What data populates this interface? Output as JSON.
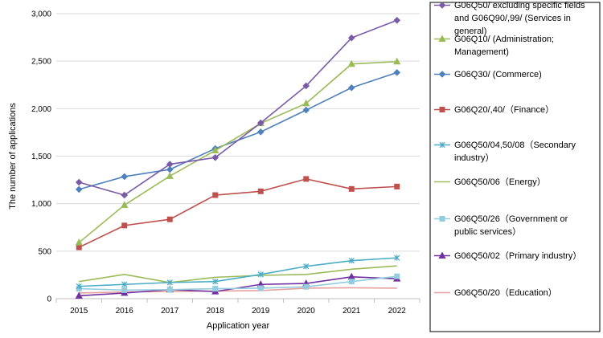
{
  "chart_data": {
    "type": "line",
    "xlabel": "Application year",
    "ylabel": "The number of applications",
    "ylim": [
      0,
      3000
    ],
    "yticks": [
      0,
      500,
      1000,
      1500,
      2000,
      2500,
      3000
    ],
    "ytick_labels": [
      "0",
      "500",
      "1,000",
      "1,500",
      "2,000",
      "2,500",
      "3,000"
    ],
    "categories": [
      "2015",
      "2016",
      "2017",
      "2018",
      "2019",
      "2020",
      "2021",
      "2022"
    ],
    "grid": "horizontal",
    "legend_position": "right",
    "series": [
      {
        "name": "G06Q50/ excluding specific fields and G06Q90/,99/ (Services in general)",
        "legend_lines": [
          "G06Q50/ excluding specific fields",
          "and G06Q90/,99/ (Services in",
          "general)"
        ],
        "color": "#7a5aa6",
        "marker": "diamond",
        "values": [
          1225,
          1090,
          1415,
          1485,
          1850,
          2240,
          2745,
          2930
        ]
      },
      {
        "name": "G06Q10/ (Administration; Management)",
        "legend_lines": [
          "G06Q10/ (Administration;",
          "Management)"
        ],
        "color": "#9bbb59",
        "marker": "triangle",
        "values": [
          590,
          985,
          1290,
          1560,
          1845,
          2055,
          2470,
          2495
        ]
      },
      {
        "name": "G06Q30/ (Commerce)",
        "legend_lines": [
          "G06Q30/ (Commerce)"
        ],
        "color": "#4f81bd",
        "marker": "diamond",
        "values": [
          1150,
          1285,
          1360,
          1580,
          1755,
          1985,
          2220,
          2380
        ]
      },
      {
        "name": "G06Q20/,40/（Finance）",
        "legend_lines": [
          "G06Q20/,40/（Finance）"
        ],
        "color": "#c0504d",
        "marker": "square",
        "values": [
          540,
          770,
          835,
          1090,
          1130,
          1260,
          1155,
          1180
        ]
      },
      {
        "name": "G06Q50/04,50/08（Secondary industry）",
        "legend_lines": [
          "G06Q50/04,50/08（Secondary",
          "industry）"
        ],
        "color": "#4bacc6",
        "marker": "x",
        "values": [
          130,
          150,
          170,
          180,
          255,
          340,
          400,
          430
        ]
      },
      {
        "name": "G06Q50/06（Energy）",
        "legend_lines": [
          "G06Q50/06（Energy）"
        ],
        "color": "#9bbb59",
        "marker": "none",
        "values": [
          180,
          255,
          170,
          225,
          245,
          255,
          310,
          345
        ]
      },
      {
        "name": "G06Q50/26（Government or public services）",
        "legend_lines": [
          "G06Q50/26（Government or",
          "public services）"
        ],
        "color": "#93cddd",
        "marker": "square",
        "values": [
          105,
          90,
          95,
          105,
          110,
          125,
          180,
          235
        ]
      },
      {
        "name": "G06Q50/02（Primary industry）",
        "legend_lines": [
          "G06Q50/02（Primary industry）"
        ],
        "color": "#7030a0",
        "marker": "triangle",
        "values": [
          30,
          60,
          95,
          75,
          150,
          160,
          230,
          210
        ]
      },
      {
        "name": "G06Q50/20（Education）",
        "legend_lines": [
          "G06Q50/20（Education）"
        ],
        "color": "#e6a0a0",
        "marker": "none",
        "values": [
          60,
          70,
          75,
          80,
          85,
          110,
          115,
          110
        ]
      }
    ]
  }
}
